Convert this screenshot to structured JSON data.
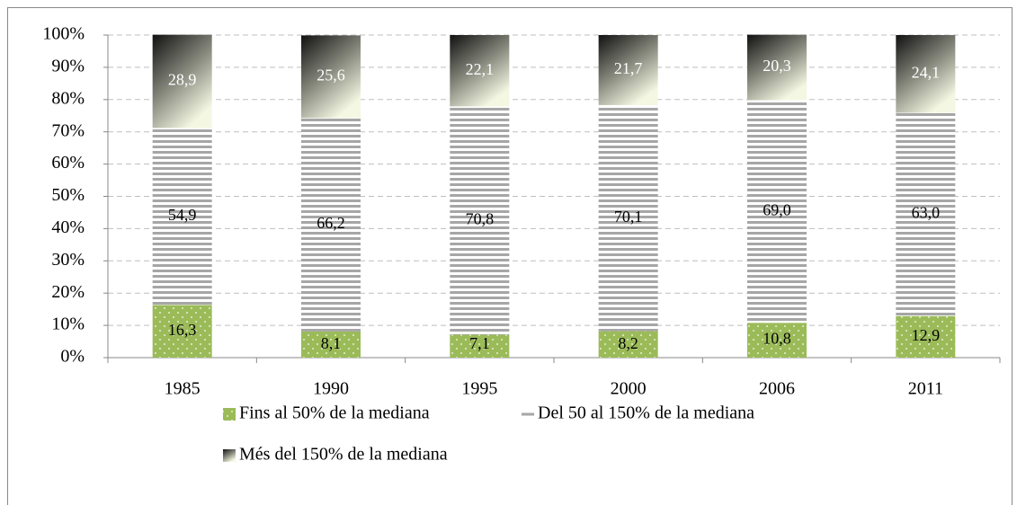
{
  "chart_data": {
    "type": "stacked_bar",
    "categories": [
      "1985",
      "1990",
      "1995",
      "2000",
      "2006",
      "2011"
    ],
    "series": [
      {
        "name": "Fins al 50% de la mediana",
        "color": "#9bbb59",
        "values": [
          16.3,
          8.1,
          7.1,
          8.2,
          10.8,
          12.9
        ],
        "value_labels": [
          "16,3",
          "8,1",
          "7,1",
          "8,2",
          "10,8",
          "12,9"
        ]
      },
      {
        "name": "Del 50 al 150% de la mediana",
        "color": "#a6a6a6",
        "values": [
          54.9,
          66.2,
          70.8,
          70.1,
          69.0,
          63.0
        ],
        "value_labels": [
          "54,9",
          "66,2",
          "70,8",
          "70,1",
          "69,0",
          "63,0"
        ]
      },
      {
        "name": "Més del 150% de la mediana",
        "color": "#1a1a1a",
        "values": [
          28.9,
          25.6,
          22.1,
          21.7,
          20.3,
          24.1
        ],
        "value_labels": [
          "28,9",
          "25,6",
          "22,1",
          "21,7",
          "20,3",
          "24,1"
        ]
      }
    ],
    "ylim": [
      0,
      100
    ],
    "yticks": [
      {
        "value": 0,
        "label": "0%"
      },
      {
        "value": 10,
        "label": "10%"
      },
      {
        "value": 20,
        "label": "20%"
      },
      {
        "value": 30,
        "label": "30%"
      },
      {
        "value": 40,
        "label": "40%"
      },
      {
        "value": 50,
        "label": "50%"
      },
      {
        "value": 60,
        "label": "60%"
      },
      {
        "value": 70,
        "label": "70%"
      },
      {
        "value": 80,
        "label": "80%"
      },
      {
        "value": 90,
        "label": "90%"
      },
      {
        "value": 100,
        "label": "100%"
      }
    ],
    "grid": true,
    "legend": "bottom"
  }
}
